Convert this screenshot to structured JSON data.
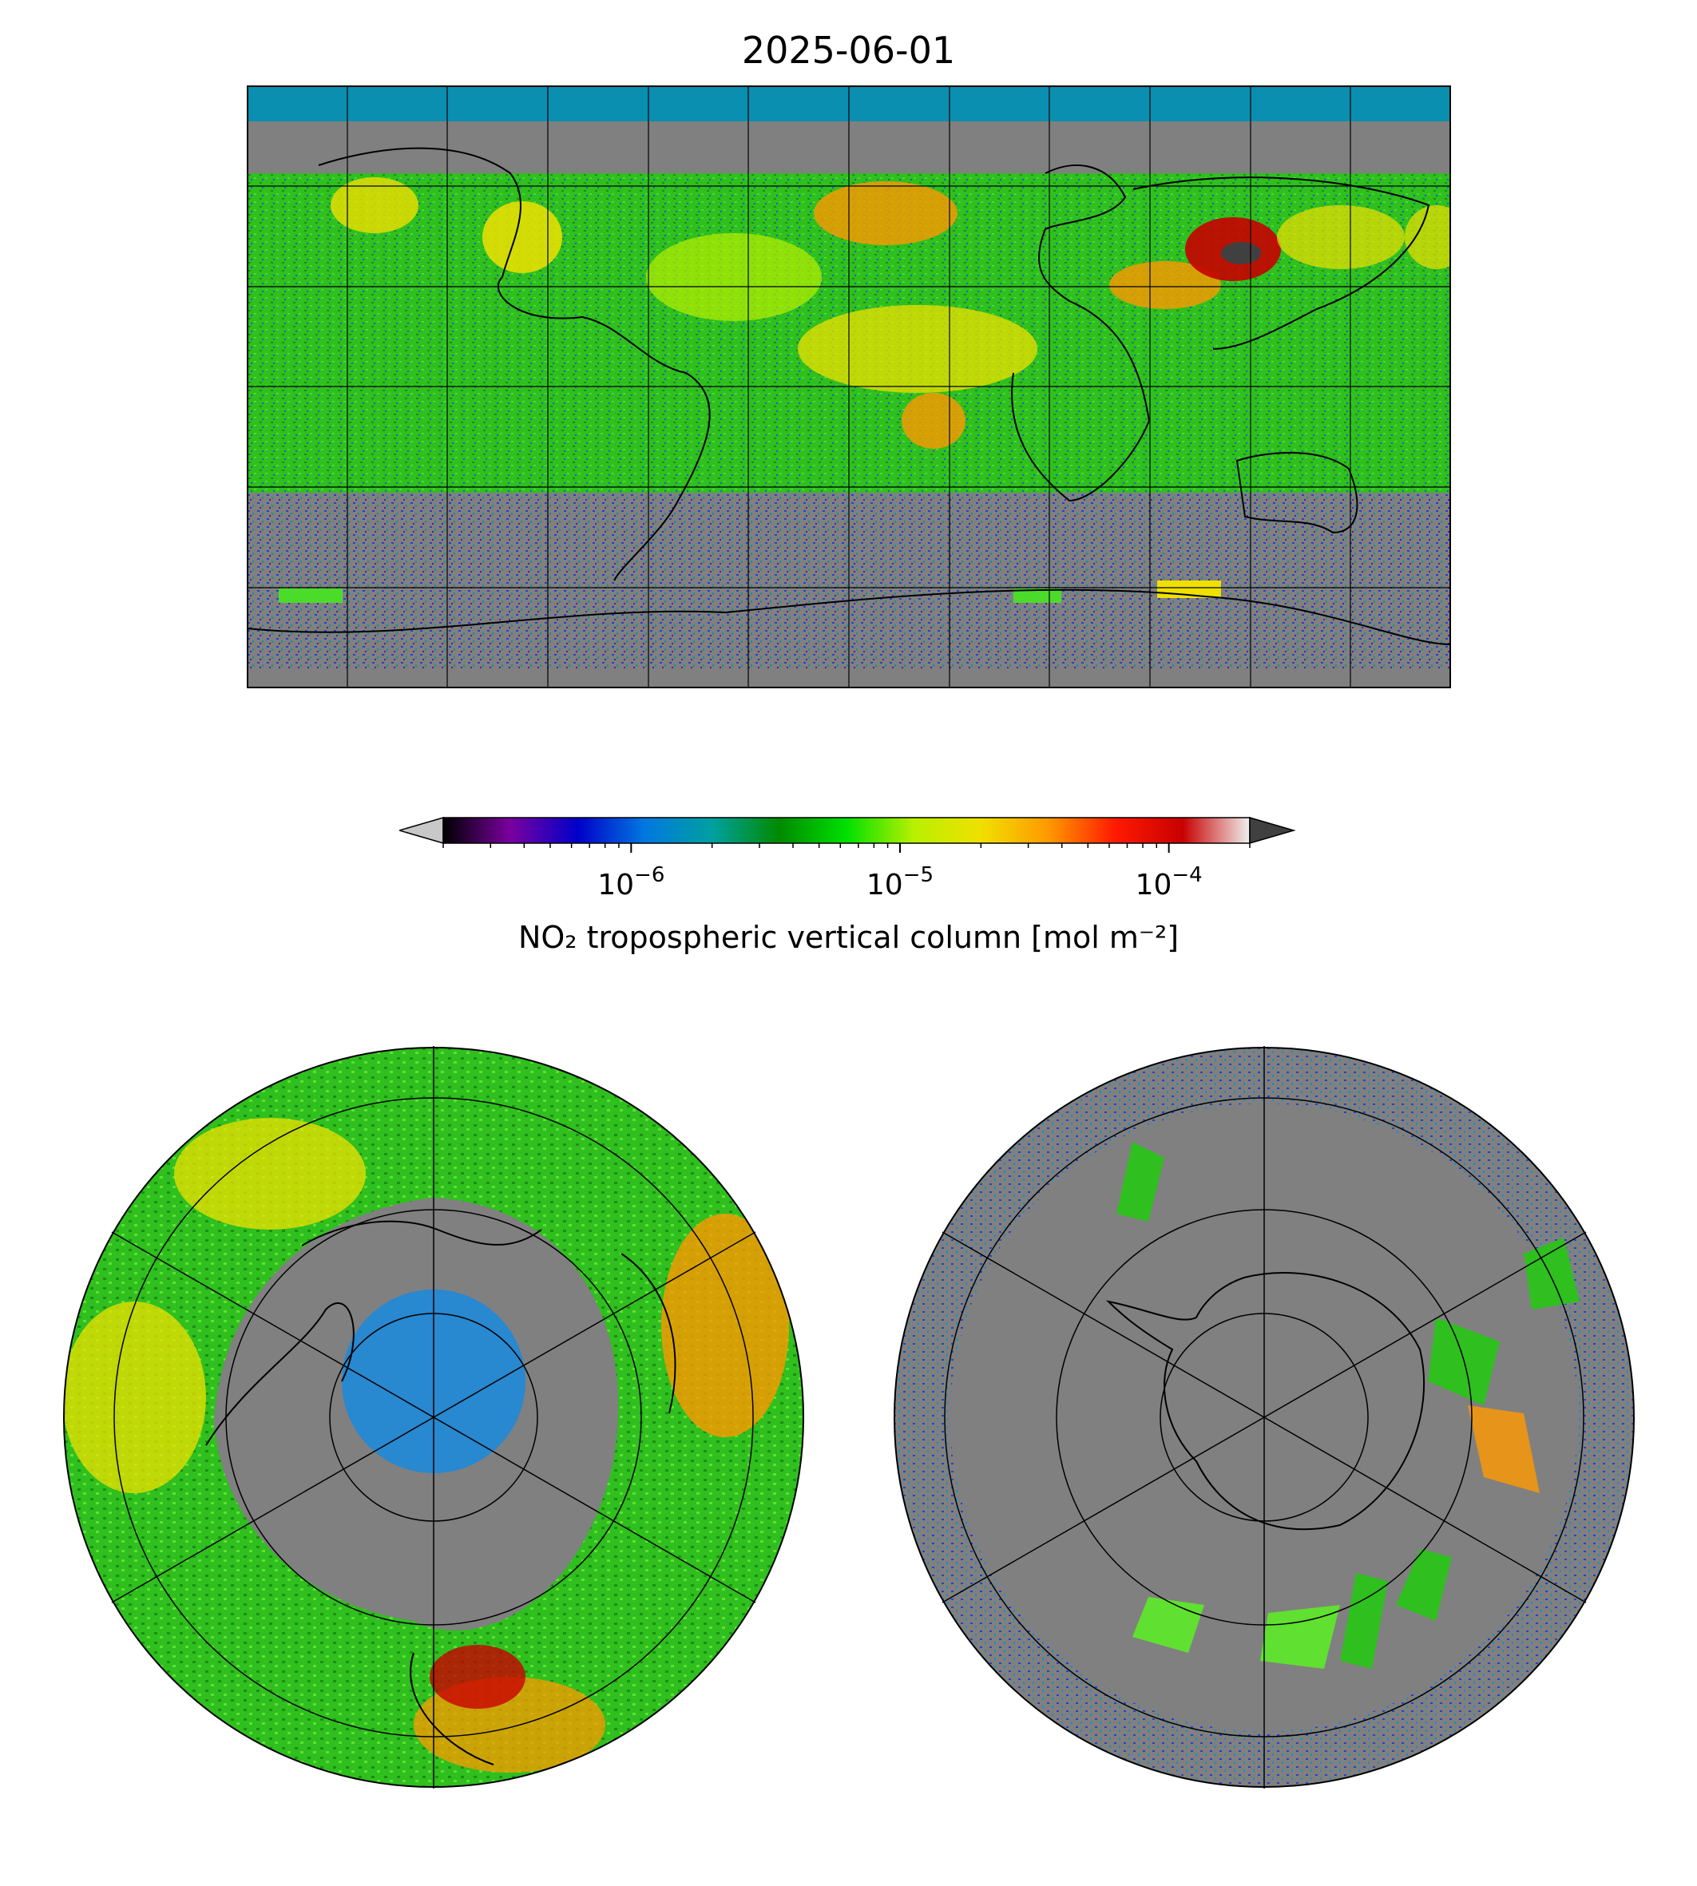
{
  "title": "2025-06-01",
  "colorbar": {
    "label": "NO₂ tropospheric vertical column [mol m⁻²]",
    "scale": "log",
    "range": [
      2e-07,
      0.0002
    ],
    "extend": "both",
    "ticks": [
      {
        "value": 1e-06,
        "base": "10",
        "exp": "−6"
      },
      {
        "value": 1e-05,
        "base": "10",
        "exp": "−5"
      },
      {
        "value": 0.0001,
        "base": "10",
        "exp": "−4"
      }
    ],
    "colormap": [
      "#000000",
      "#7a00a0",
      "#0000c8",
      "#0078e0",
      "#00a0a0",
      "#008a00",
      "#00e000",
      "#b8f000",
      "#f0e000",
      "#ff9900",
      "#ff1a00",
      "#c80000",
      "#f0f0f0"
    ],
    "under_color": "#c8c8c8",
    "over_color": "#404040"
  },
  "maps": {
    "global": {
      "projection": "plate-carree",
      "nodata_color": "#808080"
    },
    "north_polar": {
      "projection": "north-polar-stereographic",
      "nodata_color": "#808080"
    },
    "south_polar": {
      "projection": "south-polar-stereographic",
      "nodata_color": "#808080"
    }
  }
}
